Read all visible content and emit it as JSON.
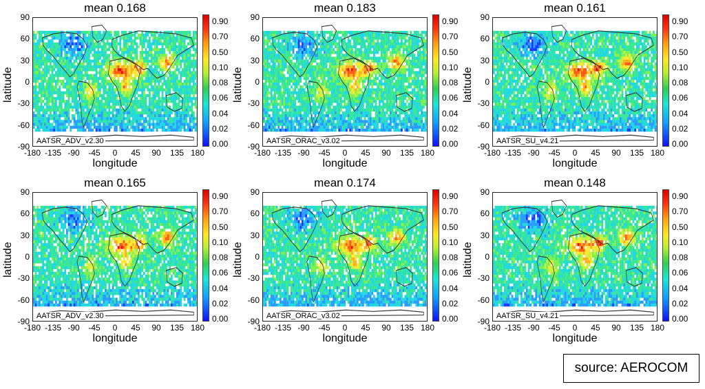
{
  "source_label": "source: AEROCOM",
  "axis": {
    "xlabel": "longitude",
    "ylabel": "latitude",
    "xticks": [
      "-180",
      "-135",
      "-90",
      "-45",
      "0",
      "45",
      "90",
      "135",
      "180"
    ],
    "yticks": [
      "90",
      "60",
      "30",
      "0",
      "-30",
      "-60",
      "-90"
    ],
    "colorbar_ticks": [
      "0.90",
      "0.70",
      "0.50",
      "0.10",
      "0.08",
      "0.06",
      "0.04",
      "0.02",
      "0.00"
    ]
  },
  "colors": {
    "low": "#1010ff",
    "mid": "#30d050",
    "high": "#e00000"
  },
  "panels": [
    {
      "title": "mean 0.168",
      "dataset": "AATSR_ADV_v2.30"
    },
    {
      "title": "mean 0.183",
      "dataset": "AATSR_ORAC_v3.02"
    },
    {
      "title": "mean 0.161",
      "dataset": "AATSR_SU_v4.21"
    },
    {
      "title": "mean 0.165",
      "dataset": "AATSR_ADV_v2.30"
    },
    {
      "title": "mean 0.174",
      "dataset": "AATSR_ORAC_v3.02"
    },
    {
      "title": "mean 0.148",
      "dataset": "AATSR_SU_v4.21"
    }
  ]
}
